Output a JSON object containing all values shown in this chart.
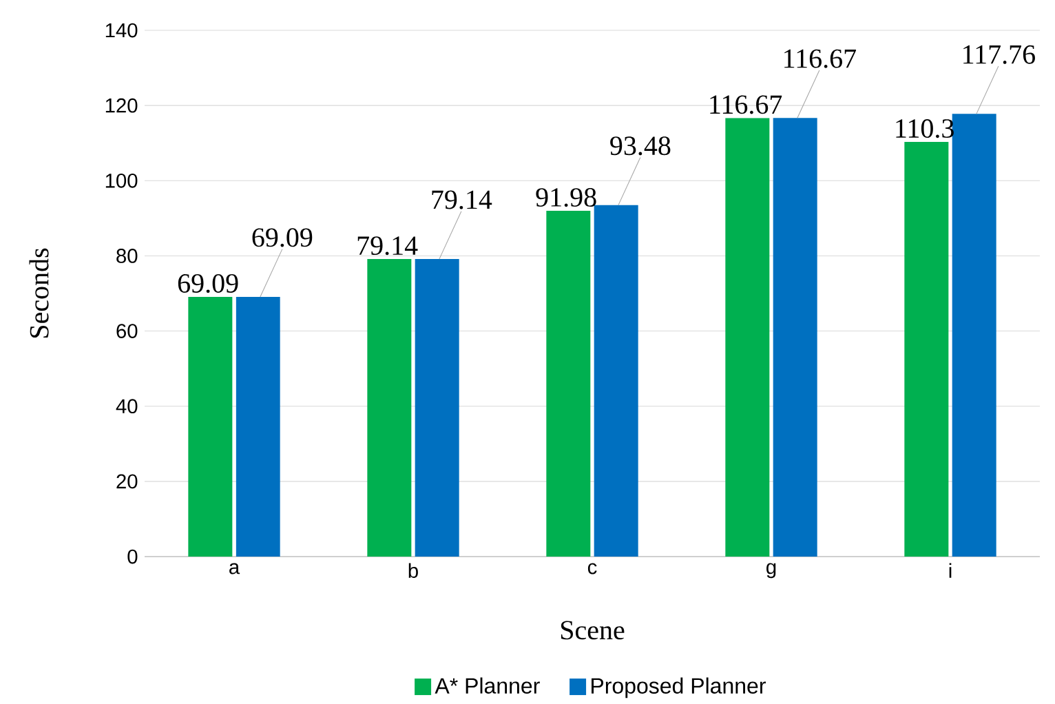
{
  "chart_data": {
    "type": "bar",
    "xlabel": "Scene",
    "ylabel": "Seconds",
    "categories": [
      "a",
      "b",
      "c",
      "g",
      "i"
    ],
    "series": [
      {
        "name": "A* Planner",
        "color": "#00b050",
        "values": [
          69.09,
          79.14,
          91.98,
          116.67,
          110.3
        ]
      },
      {
        "name": "Proposed Planner",
        "color": "#0070c0",
        "values": [
          69.09,
          79.14,
          93.48,
          116.67,
          117.76
        ]
      }
    ],
    "ylim": [
      0,
      140
    ],
    "yticks": [
      0,
      20,
      40,
      60,
      80,
      100,
      120,
      140
    ],
    "grid": "y",
    "legend": "bottom",
    "data_labels": true
  }
}
